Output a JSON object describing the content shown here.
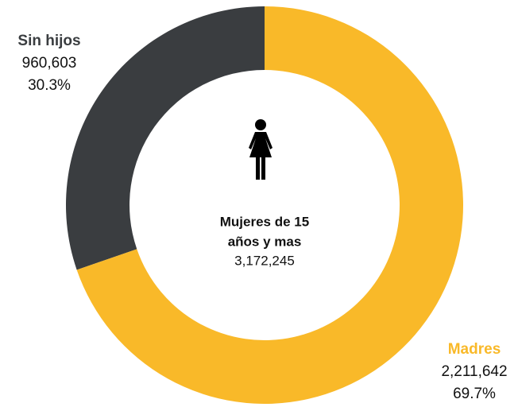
{
  "chart_data": {
    "type": "pie",
    "donut": true,
    "categories": [
      "Madres",
      "Sin hijos"
    ],
    "values": [
      2211642,
      960603
    ],
    "value_labels": [
      "2,211,642",
      "960,603"
    ],
    "percents": [
      69.7,
      30.3
    ],
    "percent_labels": [
      "69.7%",
      "30.3%"
    ],
    "colors": [
      "#f9b929",
      "#3a3d40"
    ],
    "center_title": [
      "Mujeres de 15",
      "años y mas"
    ],
    "total": 3172245,
    "total_label": "3,172,245"
  }
}
